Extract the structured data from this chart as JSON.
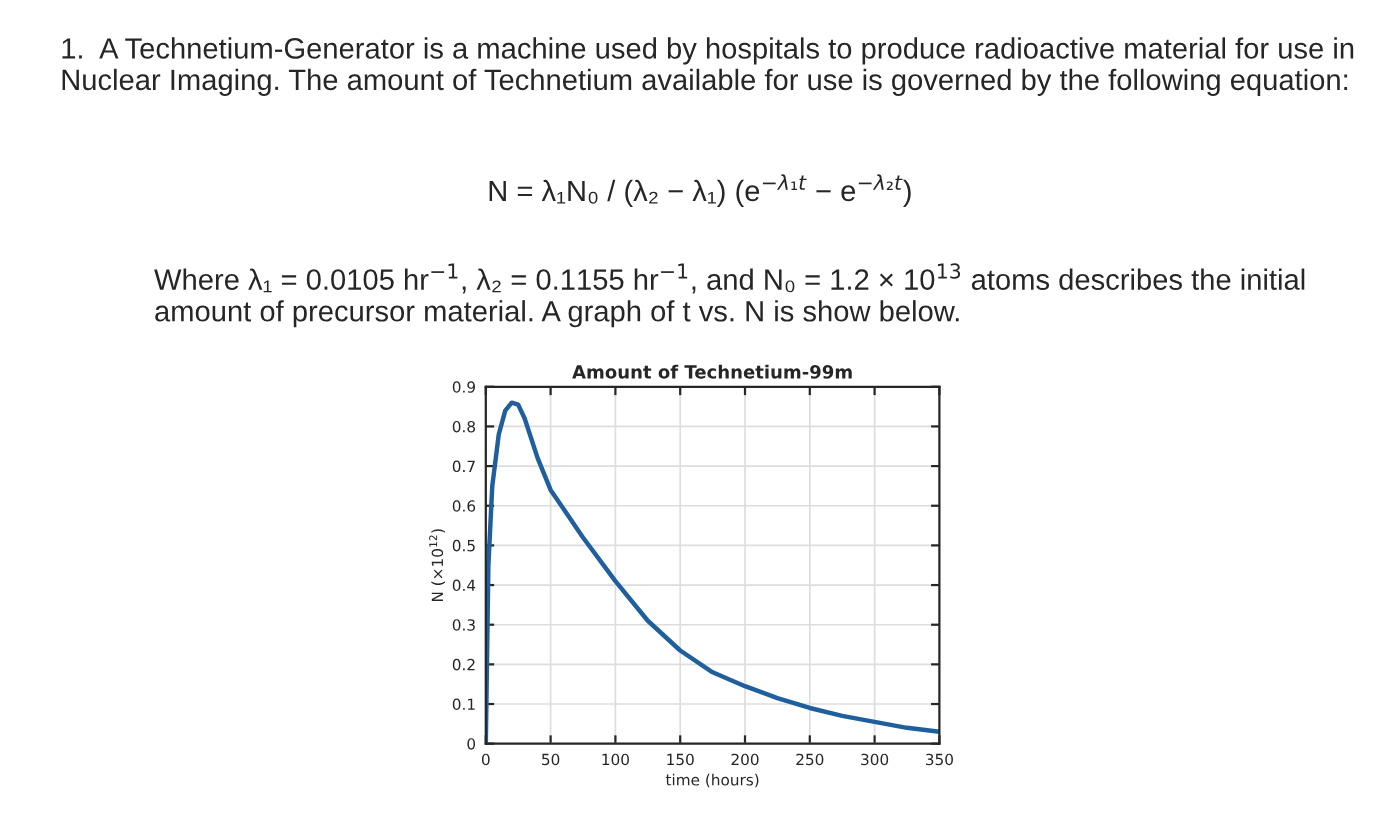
{
  "chart_data": {
    "type": "line",
    "title": "Amount of Technetium-99m",
    "xlabel": "time (hours)",
    "ylabel": "N (×10$^{12}$)",
    "annotations": [
      "1.  A Technetium-Generator is a machine used by hospitals to produce radioactive material for use in Nuclear Imaging. The amount of Technetium available for use is governed by the following equation:",
      "N = λ₁N₀ / (λ₂ − λ₁) (e$^{−λ₁t}$ − e$^{−λ₂t}$)",
      "Where λ₁ = 0.0105 hr$^{−1}$, λ₂ = 0.1155 hr$^{−1}$, and N₀ = 1.2 × 10$^{13}$ atoms describes the initial amount of precursor material. A graph of t vs. N is show below."
    ],
    "series": [
      {
        "color": "#1f5f9e",
        "x": [
          0,
          2,
          5,
          10,
          15,
          20,
          25,
          30,
          40,
          50,
          75,
          100,
          125,
          150,
          175,
          200,
          225,
          250,
          275,
          300,
          325,
          350
        ],
        "values": [
          0,
          0.45,
          0.65,
          0.78,
          0.84,
          0.86,
          0.855,
          0.82,
          0.72,
          0.64,
          0.52,
          0.41,
          0.31,
          0.235,
          0.18,
          0.145,
          0.115,
          0.09,
          0.07,
          0.055,
          0.04,
          0.03
        ]
      }
    ],
    "xlim": [
      0,
      350
    ],
    "xticks": [
      0,
      50,
      100,
      150,
      200,
      250,
      300,
      350
    ],
    "ylim": [
      0,
      0.9
    ],
    "yticks": [
      0,
      0.1,
      0.2,
      0.3,
      0.4,
      0.5,
      0.6,
      0.7,
      0.8,
      0.9
    ],
    "grid": true,
    "marker": "none",
    "line_style": "solid"
  }
}
